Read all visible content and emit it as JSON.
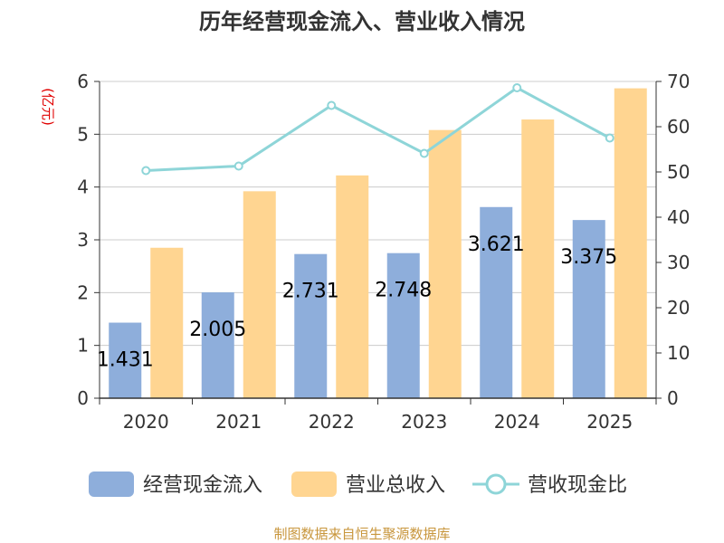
{
  "chart_data": {
    "type": "bar",
    "title": "历年经营现金流入、营业收入情况",
    "categories": [
      "2020",
      "2021",
      "2022",
      "2023",
      "2024",
      "2025"
    ],
    "series": [
      {
        "name": "经营现金流入",
        "axis": "left",
        "color": "#8eaedb",
        "values": [
          1.431,
          2.005,
          2.731,
          2.748,
          3.621,
          3.375
        ],
        "labels": [
          "1.431",
          "2.005",
          "2.731",
          "2.748",
          "3.621",
          "3.375"
        ]
      },
      {
        "name": "营业总收入",
        "axis": "left",
        "color": "#ffd591",
        "values": [
          2.85,
          3.92,
          4.22,
          5.08,
          5.28,
          5.87
        ]
      },
      {
        "name": "营收现金比",
        "type": "line",
        "axis": "right",
        "color": "#8ed5d8",
        "values": [
          50.3,
          51.3,
          64.7,
          54.1,
          68.6,
          57.5
        ]
      }
    ],
    "yleft": {
      "unit": "(亿元)",
      "lim": [
        0,
        6
      ],
      "ticks": [
        "0",
        "1",
        "2",
        "3",
        "4",
        "5",
        "6"
      ]
    },
    "yright": {
      "unit": "%",
      "lim": [
        0,
        70
      ],
      "ticks": [
        "0",
        "10",
        "20",
        "30",
        "40",
        "50",
        "60",
        "70"
      ]
    },
    "grid": true,
    "legend": "bottom"
  },
  "source": "制图数据来自恒生聚源数据库"
}
